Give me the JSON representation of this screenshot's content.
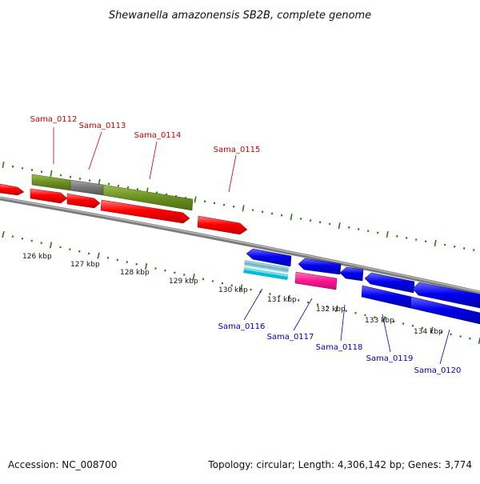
{
  "title": "Shewanella amazonensis SB2B, complete genome",
  "footer": {
    "accession": "Accession: NC_008700",
    "summary": "Topology: circular; Length: 4,306,142 bp; Genes: 3,774"
  },
  "colors": {
    "backbone": "#808080",
    "ticks": "#2a7a12",
    "forward_label": "#cc0000",
    "reverse_label": "#0000bb",
    "cds_forward": "#ff0000",
    "cds_reverse": "#0000ee",
    "olive": "#6b8e23",
    "grey_feature": "#7a7a7a",
    "magenta": "#ff1493",
    "cyan": "#00bcd4"
  },
  "scale": {
    "unit": "kbp",
    "labels": [
      "126 kbp",
      "127 kbp",
      "128 kbp",
      "129 kbp",
      "130 kbp",
      "131 kbp",
      "132 kbp",
      "133 kbp",
      "134 kbp"
    ]
  },
  "forward_genes": [
    "Sama_0112",
    "Sama_0113",
    "Sama_0114",
    "Sama_0115"
  ],
  "reverse_genes": [
    "Sama_0116",
    "Sama_0117",
    "Sama_0118",
    "Sama_0119",
    "Sama_0120"
  ]
}
